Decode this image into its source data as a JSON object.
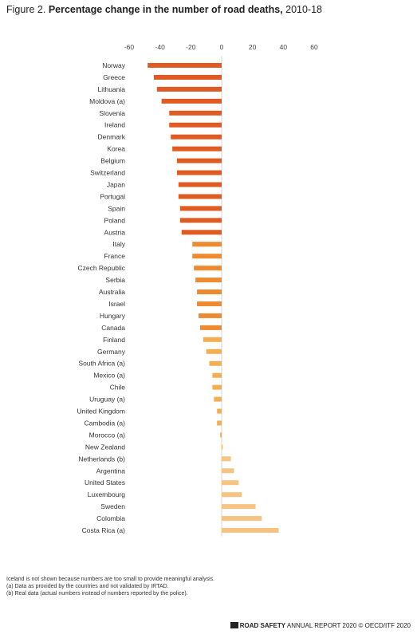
{
  "figure": {
    "label": "Figure 2.",
    "title": "Percentage change in the number of road deaths,",
    "years": "2010-18"
  },
  "chart_data": {
    "type": "bar",
    "orientation": "horizontal",
    "title": "Percentage change in the number of road deaths, 2010-18",
    "xlim": [
      -60,
      60
    ],
    "xticks": [
      -60,
      -40,
      -20,
      0,
      20,
      40,
      60
    ],
    "axis_position": "top",
    "grid": false,
    "categories": [
      "Norway",
      "Greece",
      "Lithuania",
      "Moldova (a)",
      "Slovenia",
      "Ireland",
      "Denmark",
      "Korea",
      "Belgium",
      "Switzerland",
      "Japan",
      "Portugal",
      "Spain",
      "Poland",
      "Austria",
      "Italy",
      "France",
      "Czech Republic",
      "Serbia",
      "Australia",
      "Israel",
      "Hungary",
      "Canada",
      "Finland",
      "Germany",
      "South Africa (a)",
      "Mexico (a)",
      "Chile",
      "Uruguay (a)",
      "United Kingdom",
      "Cambodia (a)",
      "Morocco (a)",
      "New Zealand",
      "Netherlands (b)",
      "Argentina",
      "United States",
      "Luxembourg",
      "Sweden",
      "Colombia",
      "Costa Rica (a)"
    ],
    "values": [
      -48,
      -44,
      -42,
      -39,
      -34,
      -34,
      -33,
      -32,
      -29,
      -29,
      -28,
      -28,
      -27,
      -27,
      -26,
      -19,
      -19,
      -18,
      -17,
      -16,
      -16,
      -15,
      -14,
      -12,
      -10,
      -8,
      -6,
      -6,
      -5,
      -3,
      -3,
      -1,
      0.5,
      6,
      8,
      11,
      13,
      22,
      26,
      37
    ],
    "colors": {
      "dark": "#e05a23",
      "mid": "#ee8a2f",
      "light": "#f4ae52",
      "pale": "#f6c383"
    }
  },
  "notes": [
    "Iceland is not shown because numbers are too small to provide meaningful analysis.",
    "(a) Data as provided by the countries and not validated by IRTAD.",
    "(b) Real data (actual numbers instead of numbers reported by the police)."
  ],
  "footer": {
    "brand": "ROAD SAFETY",
    "rest": "ANNUAL REPORT 2020 © OECD/ITF 2020"
  }
}
